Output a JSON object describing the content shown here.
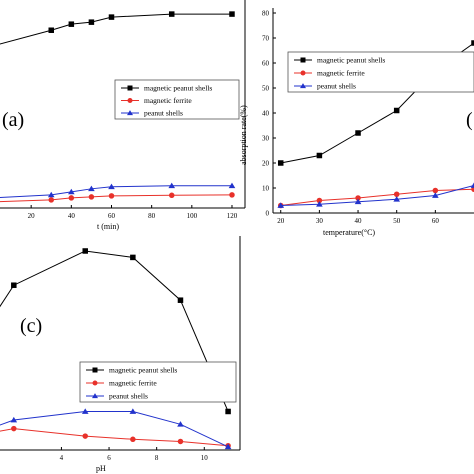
{
  "colors": {
    "magnetic_peanut_shells": "#000000",
    "magnetic_ferrite": "#e8312a",
    "peanut_shells": "#2233cc"
  },
  "chart_data": [
    {
      "id": "a",
      "type": "line",
      "panel_label": "(a)",
      "xlabel": "t (min)",
      "ylabel": "",
      "xlim": [
        0,
        122
      ],
      "ylim": [
        0,
        100
      ],
      "x_ticks": [
        20,
        40,
        60,
        80,
        100,
        120
      ],
      "legend": "center-right",
      "series": [
        {
          "name": "magnetic peanut shells",
          "marker": "square",
          "color": "#000000",
          "x": [
            0,
            30,
            40,
            50,
            60,
            90,
            120
          ],
          "y": [
            80,
            88,
            91,
            92,
            94.5,
            96,
            96
          ]
        },
        {
          "name": "magnetic ferrite",
          "marker": "circle",
          "color": "#e8312a",
          "x": [
            0,
            30,
            40,
            50,
            60,
            90,
            120
          ],
          "y": [
            3,
            4,
            5,
            5.5,
            6,
            6.3,
            6.5
          ]
        },
        {
          "name": "peanut shells",
          "marker": "triangle",
          "color": "#2233cc",
          "x": [
            0,
            30,
            40,
            50,
            60,
            90,
            120
          ],
          "y": [
            5,
            6.5,
            8,
            9.5,
            10.5,
            11,
            11
          ]
        }
      ]
    },
    {
      "id": "b",
      "type": "line",
      "panel_label": "(",
      "xlabel": "temperature(°C)",
      "ylabel": "absorption rate(%)",
      "xlim": [
        18,
        70
      ],
      "ylim": [
        0,
        82
      ],
      "x_ticks": [
        20,
        30,
        40,
        50,
        60
      ],
      "y_ticks": [
        0,
        10,
        20,
        30,
        40,
        50,
        60,
        70,
        80
      ],
      "legend": "top-right",
      "series": [
        {
          "name": "magnetic peanut shells",
          "marker": "square",
          "color": "#000000",
          "x": [
            20,
            30,
            40,
            50,
            60,
            70
          ],
          "y": [
            20,
            23,
            32,
            41,
            57,
            68
          ]
        },
        {
          "name": "magnetic ferrite",
          "marker": "circle",
          "color": "#e8312a",
          "x": [
            20,
            30,
            40,
            50,
            60,
            70
          ],
          "y": [
            3,
            5,
            6,
            7.5,
            9,
            9.5
          ]
        },
        {
          "name": "peanut shells",
          "marker": "triangle",
          "color": "#2233cc",
          "x": [
            20,
            30,
            40,
            50,
            60,
            70
          ],
          "y": [
            3,
            3.5,
            4.5,
            5.5,
            7,
            11
          ]
        }
      ]
    },
    {
      "id": "c",
      "type": "line",
      "panel_label": "(c)",
      "xlabel": "pH",
      "ylabel": "",
      "xlim": [
        1,
        11.5
      ],
      "ylim": [
        0,
        100
      ],
      "x_ticks": [
        4,
        6,
        8,
        10
      ],
      "legend": "center-right",
      "series": [
        {
          "name": "magnetic peanut shells",
          "marker": "square",
          "color": "#000000",
          "x": [
            1,
            2,
            5,
            7,
            9,
            11
          ],
          "y": [
            60,
            77,
            93,
            90,
            70,
            18
          ]
        },
        {
          "name": "magnetic ferrite",
          "marker": "circle",
          "color": "#e8312a",
          "x": [
            1,
            2,
            5,
            7,
            9,
            11
          ],
          "y": [
            8,
            10,
            6.5,
            5,
            4,
            2
          ]
        },
        {
          "name": "peanut shells",
          "marker": "triangle",
          "color": "#2233cc",
          "x": [
            1,
            2,
            5,
            7,
            9,
            11
          ],
          "y": [
            10,
            14,
            18,
            18,
            12,
            1.5
          ]
        }
      ]
    }
  ]
}
